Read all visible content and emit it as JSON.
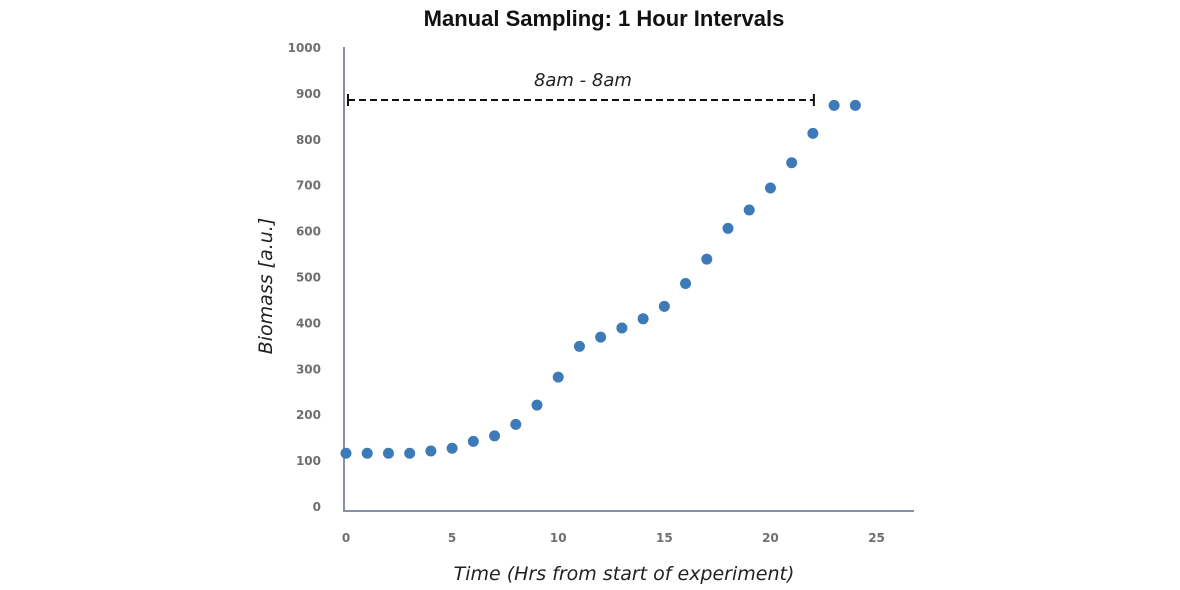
{
  "chart_data": {
    "type": "scatter",
    "title": "Manual Sampling: 1 Hour Intervals",
    "xlabel": "Time (Hrs from start of experiment)",
    "ylabel": "Biomass [a.u.]",
    "xlim": [
      0,
      27
    ],
    "ylim": [
      0,
      1000
    ],
    "x_ticks": [
      0,
      5,
      10,
      15,
      20,
      25
    ],
    "y_ticks": [
      0,
      100,
      200,
      300,
      400,
      500,
      600,
      700,
      800,
      900,
      1000
    ],
    "grid": false,
    "point_color": "#3d7ab8",
    "axis_color": "#8a8fa3",
    "series": [
      {
        "x": [
          0,
          1,
          2,
          3,
          4,
          5,
          6,
          7,
          8,
          9,
          10,
          11,
          12,
          13,
          14,
          15,
          16,
          17,
          18,
          19,
          20,
          21,
          22,
          23,
          24
        ],
        "y": [
          117,
          117,
          117,
          117,
          122,
          128,
          143,
          155,
          180,
          222,
          283,
          350,
          370,
          390,
          410,
          437,
          487,
          540,
          607,
          647,
          695,
          750,
          814,
          875,
          875
        ]
      }
    ],
    "annotations": [
      {
        "text": "8am - 8am",
        "style": "dashed-bracket",
        "x_range": [
          0,
          22
        ],
        "y": 885
      }
    ]
  }
}
